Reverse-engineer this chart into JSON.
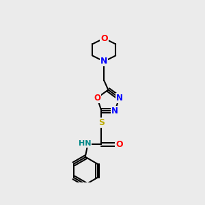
{
  "background_color": "#ebebeb",
  "bond_color": "#000000",
  "bond_width": 1.5,
  "atom_colors": {
    "O": "#ff0000",
    "N": "#0000ff",
    "S": "#bbaa00",
    "HN": "#008888",
    "C": "#000000"
  },
  "fig_width": 3.0,
  "fig_height": 3.0,
  "dpi": 100
}
